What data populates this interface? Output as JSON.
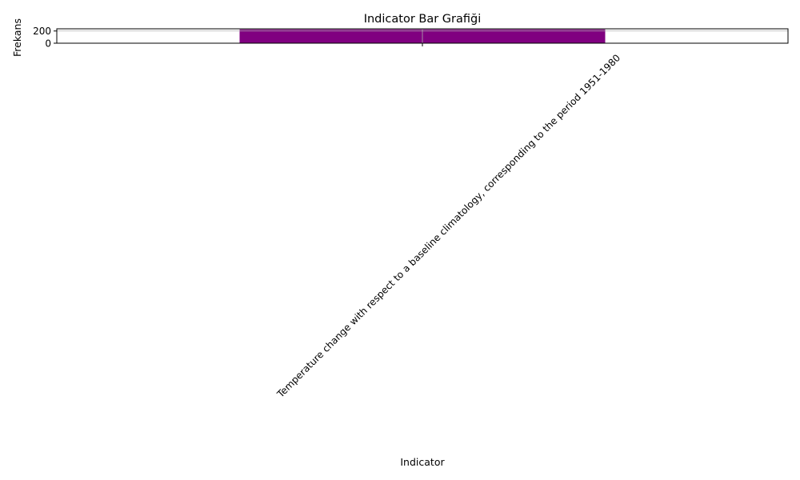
{
  "chart_data": {
    "type": "bar",
    "title": "Indicator Bar Grafiği",
    "xlabel": "Indicator",
    "ylabel": "Frekans",
    "categories": [
      "Temperature change with respect to a baseline climatology, corresponding to the period 1951-1980"
    ],
    "values": [
      225
    ],
    "yticks": [
      0,
      200
    ],
    "ylim": [
      0,
      236
    ],
    "grid": true,
    "legend": "none",
    "bar_color": "#800080",
    "grid_color": "#b0b0b0"
  }
}
